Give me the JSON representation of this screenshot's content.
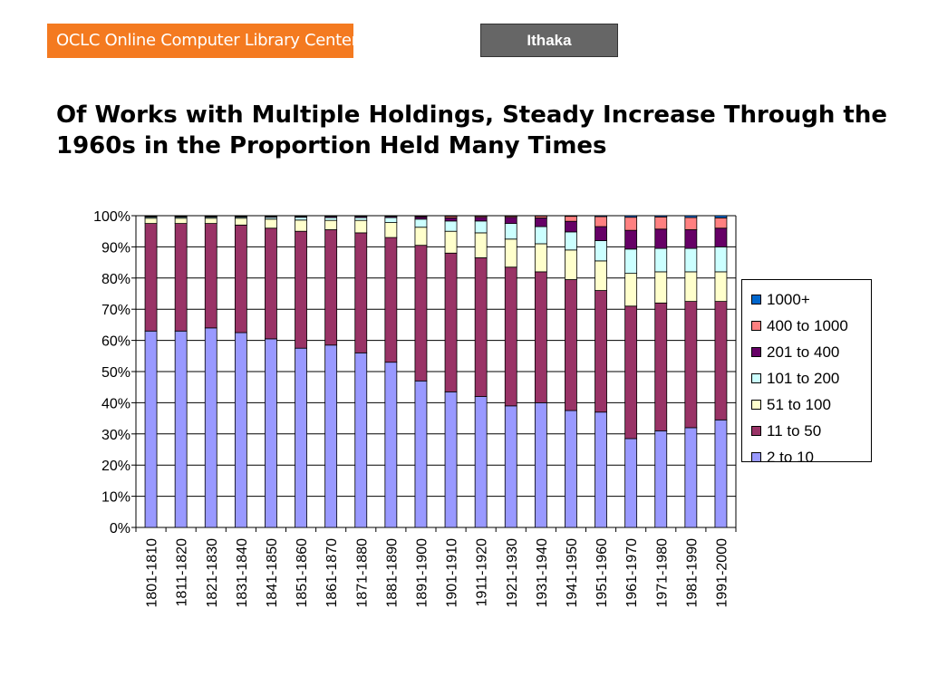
{
  "header": {
    "logo_text": "OCLC Online Computer Library Center",
    "tag_button": "Ithaka"
  },
  "title": "Of Works with Multiple Holdings, Steady Increase Through the 1960s in the Proportion Held Many Times",
  "colors": {
    "logo_bg": "#f47a20",
    "tag_bg": "#666666"
  },
  "chart_data": {
    "type": "bar",
    "stacked": true,
    "categories": [
      "1801-1810",
      "1811-1820",
      "1821-1830",
      "1831-1840",
      "1841-1850",
      "1851-1860",
      "1861-1870",
      "1871-1880",
      "1881-1890",
      "1891-1900",
      "1901-1910",
      "1911-1920",
      "1921-1930",
      "1931-1940",
      "1941-1950",
      "1951-1960",
      "1961-1970",
      "1971-1980",
      "1981-1990",
      "1991-2000"
    ],
    "y_ticks": [
      "0%",
      "10%",
      "20%",
      "30%",
      "40%",
      "50%",
      "60%",
      "70%",
      "80%",
      "90%",
      "100%"
    ],
    "ylim": [
      0,
      100
    ],
    "legend_position": "right",
    "series": [
      {
        "name": "2 to 10",
        "color": "#9999ff",
        "values": [
          63,
          63,
          64,
          62.5,
          60.5,
          57.5,
          58.5,
          56,
          53,
          47,
          43.5,
          42,
          39,
          40,
          37.5,
          37,
          28.5,
          31,
          32,
          34.5
        ]
      },
      {
        "name": "11 to 50",
        "color": "#993366",
        "values": [
          34.5,
          34.5,
          33.5,
          34.5,
          35.5,
          37.5,
          37,
          38.5,
          40,
          43.5,
          44.5,
          44.5,
          44.5,
          42,
          42,
          39,
          42.5,
          41,
          40.5,
          38
        ]
      },
      {
        "name": "51 to 100",
        "color": "#ffffcc",
        "values": [
          1.7,
          1.7,
          1.7,
          2.2,
          2.9,
          3.6,
          3.0,
          4.0,
          4.8,
          5.8,
          7.0,
          8.0,
          9.0,
          9.0,
          9.5,
          9.5,
          10.5,
          10.0,
          9.5,
          9.5
        ]
      },
      {
        "name": "101 to 200",
        "color": "#ccffff",
        "values": [
          0.4,
          0.4,
          0.4,
          0.4,
          0.6,
          0.9,
          0.9,
          0.9,
          1.6,
          2.6,
          3.3,
          3.8,
          5.0,
          5.5,
          5.8,
          6.5,
          7.8,
          7.5,
          7.5,
          8.0
        ]
      },
      {
        "name": "201 to 400",
        "color": "#660066",
        "values": [
          0.2,
          0.2,
          0.2,
          0.2,
          0.3,
          0.3,
          0.4,
          0.4,
          0.4,
          0.7,
          1.0,
          1.2,
          2.0,
          2.8,
          3.4,
          4.5,
          6.0,
          6.2,
          6.0,
          6.0
        ]
      },
      {
        "name": "400 to 1000",
        "color": "#ff8080",
        "values": [
          0.1,
          0.1,
          0.1,
          0.1,
          0.1,
          0.1,
          0.1,
          0.1,
          0.1,
          0.3,
          0.5,
          0.4,
          0.4,
          0.6,
          1.6,
          3.2,
          4.2,
          3.9,
          3.9,
          3.3
        ]
      },
      {
        "name": "1000+",
        "color": "#0066cc",
        "values": [
          0.1,
          0.1,
          0.1,
          0.1,
          0.1,
          0.1,
          0.1,
          0.1,
          0.1,
          0.1,
          0.2,
          0.1,
          0.1,
          0.1,
          0.2,
          0.3,
          0.5,
          0.4,
          0.6,
          0.7
        ]
      }
    ]
  }
}
